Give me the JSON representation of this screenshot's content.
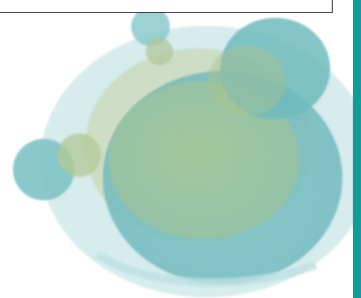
{
  "text_box": {
    "value": ""
  },
  "colors": {
    "side_bar": "#129c97",
    "text_box_border": "#1a1a1a",
    "pale_teal": "#bfe1e2",
    "mid_teal": "#7fc6c9",
    "deep_teal": "#5fb3b9",
    "sage_green": "#a9c594",
    "khaki_green": "#b5c79c"
  },
  "artwork": {
    "name": "watercolor-circles",
    "icon": "watercolor-circles-graphic"
  }
}
